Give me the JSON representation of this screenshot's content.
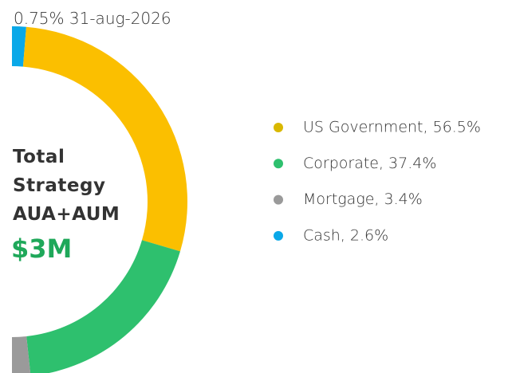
{
  "chart_data": {
    "type": "pie",
    "subtitle": "0.75% 31-aug-2026",
    "center_lines": [
      "Total",
      "Strategy",
      "AUA+AUM"
    ],
    "center_value": "$3M",
    "categories": [
      "US Government, 56.5%",
      "Corporate, 37.4%",
      "Mortgage, 3.4%",
      "Cash, 2.6%"
    ],
    "values": [
      56.5,
      37.4,
      3.4,
      2.6
    ],
    "colors": [
      "#fbbf00",
      "#2ec06e",
      "#9a9a9a",
      "#0aa8e8"
    ],
    "legend_colors": [
      "#d9b800",
      "#2ec06e",
      "#9a9a9a",
      "#0aa8e8"
    ]
  }
}
